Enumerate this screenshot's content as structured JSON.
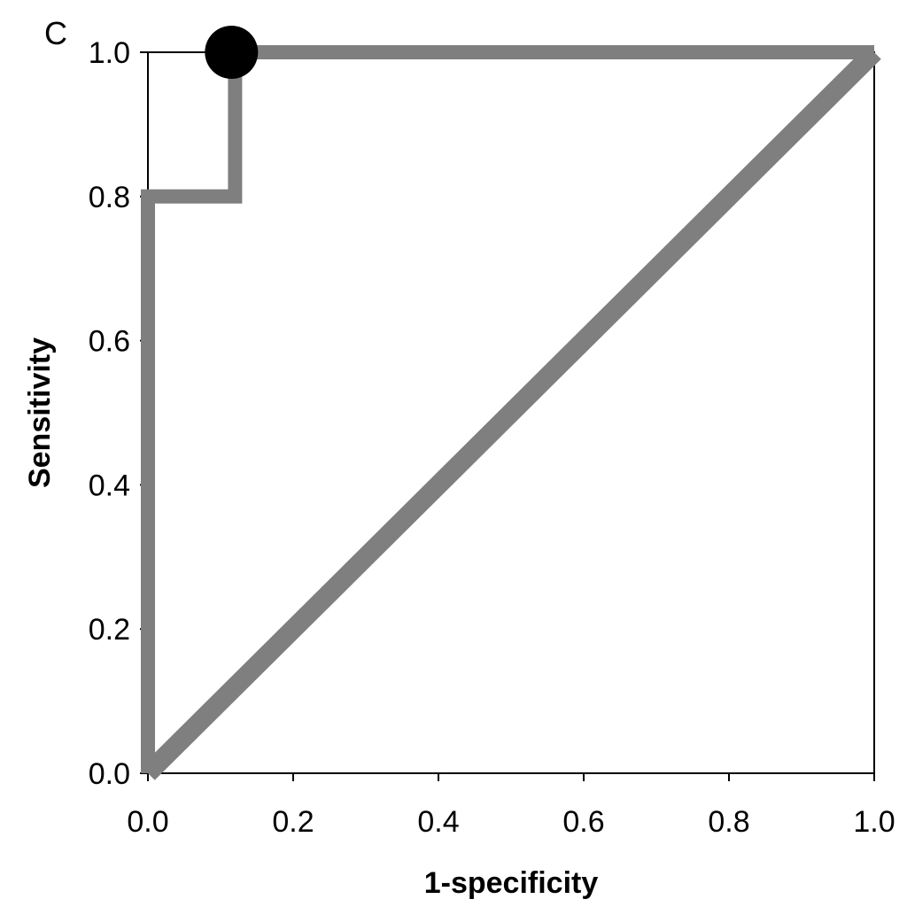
{
  "chart_data": {
    "type": "line",
    "panel_label": "C",
    "xlabel": "1-specificity",
    "ylabel": "Sensitivity",
    "xlim": [
      0,
      1
    ],
    "ylim": [
      0,
      1
    ],
    "x_ticks": [
      "0.0",
      "0.2",
      "0.4",
      "0.6",
      "0.8",
      "1.0"
    ],
    "y_ticks": [
      "0.0",
      "0.2",
      "0.4",
      "0.6",
      "0.8",
      "1.0"
    ],
    "grid": false,
    "series": [
      {
        "kind": "roc-curve",
        "color": "#7f7f7f",
        "points": [
          [
            0,
            0
          ],
          [
            0,
            0.8
          ],
          [
            0.12,
            0.8
          ],
          [
            0.12,
            1.0
          ],
          [
            1.0,
            1.0
          ]
        ]
      },
      {
        "kind": "reference-diagonal",
        "color": "#7f7f7f",
        "points": [
          [
            0,
            0
          ],
          [
            1.0,
            1.0
          ]
        ]
      }
    ],
    "highlight_point": {
      "x": 0.115,
      "y": 1.0,
      "color": "#000000"
    }
  }
}
